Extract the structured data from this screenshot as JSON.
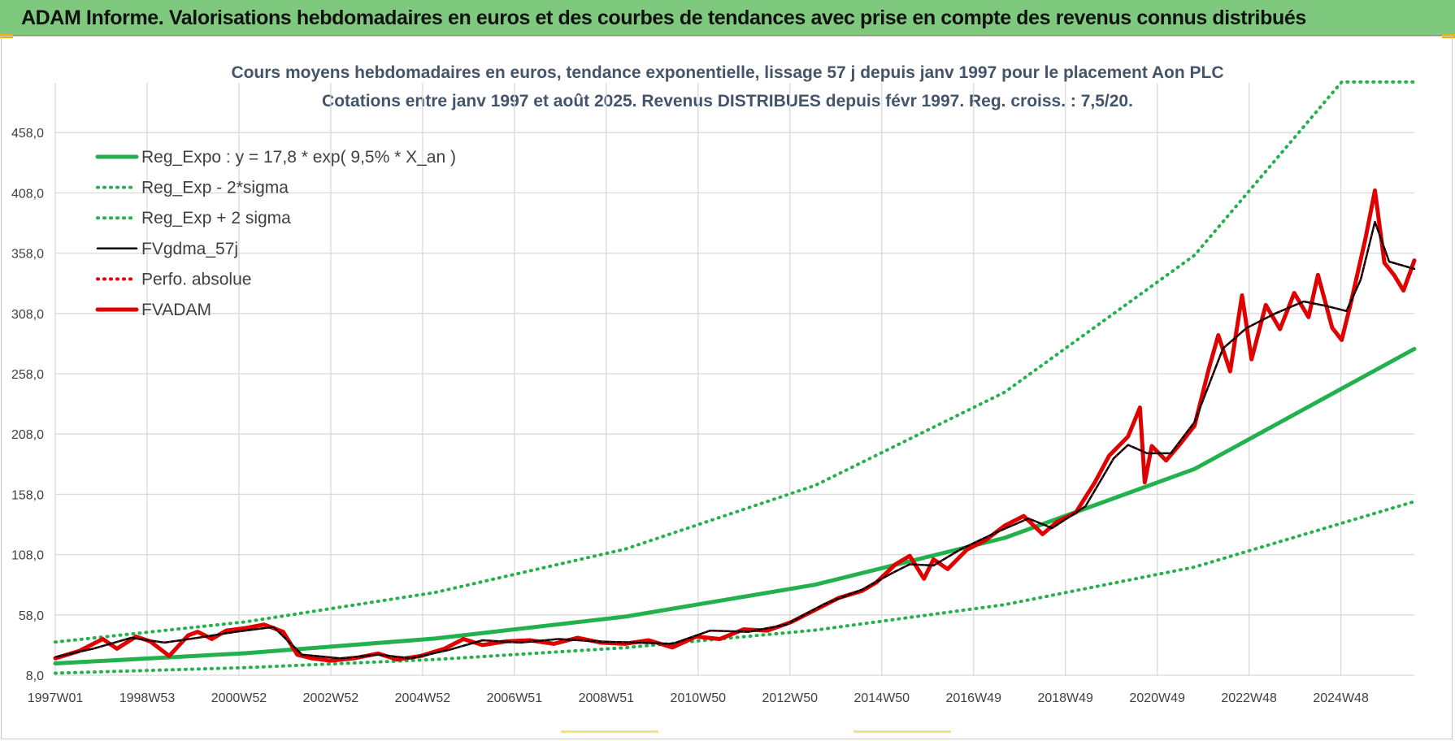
{
  "header": {
    "title": "ADAM Informe. Valorisations hebdomadaires en euros et des courbes de tendances avec prise en compte des revenus connus distribués",
    "background": "#7fc97f"
  },
  "chart_data": {
    "type": "line",
    "title_line1": "Cours moyens hebdomadaires en euros, tendance exponentielle, lissage 57 j depuis janv 1997 pour le placement Aon PLC",
    "title_line2": "Cotations entre janv 1997 et août 2025.  Revenus DISTRIBUES depuis févr 1997.  Reg. croiss. : 7,5/20.",
    "ylim": [
      8,
      500
    ],
    "y_ticks": [
      "8,0",
      "58,0",
      "108,0",
      "158,0",
      "208,0",
      "258,0",
      "308,0",
      "358,0",
      "408,0",
      "458,0"
    ],
    "x_ticks": [
      "1997W01",
      "1998W53",
      "2000W52",
      "2002W52",
      "2004W52",
      "2006W51",
      "2008W51",
      "2010W50",
      "2012W50",
      "2014W50",
      "2016W49",
      "2018W49",
      "2020W49",
      "2022W48",
      "2024W48"
    ],
    "x_range_years": [
      1997.0,
      2025.63
    ],
    "grid": true,
    "legend_position": "top-left",
    "series": [
      {
        "name": "Reg_Expo : y = 17,8 * exp( 9,5% *  X_an )",
        "style": "solid-thick",
        "color": "#22b14c",
        "x": [
          1997,
          2001,
          2005,
          2009,
          2013,
          2017,
          2021,
          2025.63
        ],
        "y": [
          17.8,
          26.2,
          38.4,
          56.5,
          83.0,
          121.9,
          179.0,
          278.6
        ]
      },
      {
        "name": "Reg_Exp - 2*sigma",
        "style": "dotted",
        "color": "#22b14c",
        "x": [
          1997,
          2001,
          2005,
          2009,
          2013,
          2017,
          2021,
          2025.63
        ],
        "y": [
          9.7,
          14.3,
          21.0,
          30.8,
          45.3,
          66.5,
          97.7,
          152.0
        ]
      },
      {
        "name": "Reg_Exp + 2 sigma",
        "style": "dotted",
        "color": "#22b14c",
        "x": [
          1997,
          2001,
          2005,
          2009,
          2013,
          2017,
          2021,
          2024.1,
          2025.63
        ],
        "y": [
          35.5,
          52.2,
          76.6,
          112.5,
          165.3,
          242.7,
          356.3,
          500.0,
          500.0
        ]
      },
      {
        "name": "FVgdma_57j",
        "style": "solid",
        "color": "#000000",
        "x": [
          1997.0,
          1997.8,
          1998.6,
          1999.3,
          2000.0,
          2000.8,
          2001.6,
          2002.2,
          2003.0,
          2003.8,
          2004.5,
          2005.3,
          2006.0,
          2006.8,
          2007.6,
          2008.4,
          2009.2,
          2010.0,
          2010.8,
          2011.6,
          2012.4,
          2013.2,
          2014.0,
          2014.6,
          2015.0,
          2015.5,
          2016.1,
          2016.8,
          2017.5,
          2018.0,
          2018.7,
          2019.3,
          2019.6,
          2020.0,
          2020.5,
          2021.0,
          2021.6,
          2022.1,
          2022.7,
          2023.3,
          2023.8,
          2024.2,
          2024.5,
          2024.8,
          2025.1,
          2025.63
        ],
        "y": [
          23,
          30,
          39,
          35,
          39,
          44,
          48,
          25,
          22,
          25,
          22,
          29,
          37,
          35,
          38,
          36,
          35,
          34,
          45,
          44,
          50,
          67,
          79,
          92,
          100,
          99,
          113,
          126,
          138,
          130,
          148,
          188,
          199,
          192,
          192,
          218,
          279,
          296,
          308,
          318,
          314,
          310,
          336,
          384,
          351,
          345
        ]
      },
      {
        "name": "Perfo. absolue",
        "style": "dotted",
        "color": "#e00000",
        "x": [
          1997.0,
          1997.8,
          1998.6,
          1999.3,
          2000.0,
          2000.8,
          2001.6,
          2002.2,
          2003.0,
          2003.8,
          2004.5,
          2005.3,
          2006.0,
          2006.8,
          2007.6,
          2008.4,
          2009.2,
          2010.0,
          2010.8,
          2011.6,
          2012.4,
          2013.2,
          2014.0,
          2014.6,
          2015.0,
          2015.5,
          2016.1,
          2016.8,
          2017.5,
          2018.0,
          2018.7,
          2019.3,
          2019.6,
          2020.0,
          2020.5,
          2021.0,
          2021.6,
          2022.1,
          2022.7,
          2023.3,
          2023.8,
          2024.2,
          2024.5,
          2024.8,
          2025.1,
          2025.63
        ],
        "y": [
          23,
          30,
          39,
          35,
          39,
          44,
          48,
          25,
          22,
          25,
          22,
          29,
          37,
          35,
          38,
          36,
          35,
          34,
          45,
          44,
          50,
          67,
          79,
          92,
          100,
          99,
          113,
          126,
          138,
          130,
          148,
          188,
          199,
          192,
          192,
          218,
          279,
          296,
          308,
          318,
          314,
          310,
          336,
          384,
          351,
          345
        ]
      },
      {
        "name": "FVADAM",
        "style": "solid-thick",
        "color": "#e00000",
        "x": [
          1997.0,
          1997.5,
          1998.0,
          1998.3,
          1998.7,
          1999.0,
          1999.4,
          1999.8,
          2000.0,
          2000.3,
          2000.6,
          2001.0,
          2001.4,
          2001.8,
          2002.1,
          2002.4,
          2002.8,
          2003.3,
          2003.8,
          2004.2,
          2004.7,
          2005.2,
          2005.6,
          2006.0,
          2006.5,
          2007.0,
          2007.5,
          2008.0,
          2008.5,
          2009.0,
          2009.5,
          2010.0,
          2010.5,
          2011.0,
          2011.5,
          2012.0,
          2012.5,
          2013.0,
          2013.5,
          2014.0,
          2014.3,
          2014.7,
          2015.0,
          2015.3,
          2015.5,
          2015.8,
          2016.2,
          2016.6,
          2017.0,
          2017.4,
          2017.8,
          2018.1,
          2018.5,
          2018.9,
          2019.2,
          2019.6,
          2019.85,
          2019.95,
          2020.1,
          2020.4,
          2020.7,
          2021.0,
          2021.3,
          2021.5,
          2021.75,
          2022.0,
          2022.2,
          2022.5,
          2022.8,
          2023.1,
          2023.4,
          2023.6,
          2023.9,
          2024.1,
          2024.3,
          2024.6,
          2024.8,
          2025.0,
          2025.2,
          2025.4,
          2025.63
        ],
        "y": [
          22,
          28,
          38,
          30,
          40,
          36,
          24,
          41,
          44,
          38,
          45,
          47,
          50,
          44,
          25,
          22,
          20,
          22,
          26,
          21,
          24,
          30,
          38,
          33,
          36,
          37,
          34,
          39,
          35,
          34,
          37,
          31,
          40,
          38,
          46,
          45,
          52,
          62,
          72,
          78,
          85,
          100,
          107,
          88,
          104,
          96,
          112,
          120,
          132,
          140,
          125,
          135,
          143,
          168,
          190,
          206,
          230,
          168,
          198,
          186,
          200,
          215,
          262,
          290,
          260,
          323,
          270,
          315,
          295,
          325,
          305,
          340,
          296,
          286,
          318,
          370,
          410,
          350,
          340,
          327,
          352
        ]
      }
    ]
  }
}
